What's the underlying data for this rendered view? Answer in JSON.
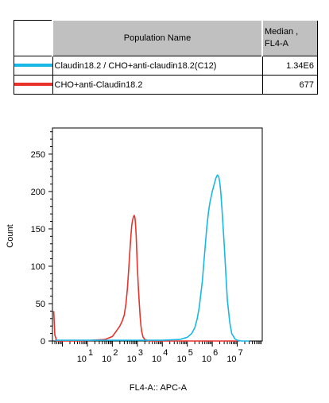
{
  "legend": {
    "header_name": "Population Name",
    "header_median_line1": "Median ,",
    "header_median_line2": "FL4-A",
    "rows": [
      {
        "name": "Claudin18.2 / CHO+anti-claudin18.2(C12)",
        "median": "1.34E6",
        "color": "#19b7e6"
      },
      {
        "name": "CHO+anti-Claudin18.2",
        "median": "677",
        "color": "#e8322c"
      }
    ]
  },
  "chart_data": {
    "type": "area",
    "xlabel": "FL4-A:: APC-A",
    "ylabel": "Count",
    "x_scale": "log",
    "xlim": [
      0.4,
      100000000
    ],
    "ylim": [
      0,
      285
    ],
    "x_ticks": [
      {
        "exp": 1,
        "label": "1"
      },
      {
        "exp": 2,
        "label": "2"
      },
      {
        "exp": 3,
        "label": "3"
      },
      {
        "exp": 4,
        "label": "4"
      },
      {
        "exp": 5,
        "label": "5"
      },
      {
        "exp": 6,
        "label": "6"
      },
      {
        "exp": 7,
        "label": "7"
      }
    ],
    "x_base_label": "10",
    "y_ticks": [
      0,
      50,
      100,
      150,
      200,
      250
    ],
    "series": [
      {
        "name": "CHO+anti-Claudin18.2",
        "color": "#e8322c",
        "x": [
          0.45,
          0.5,
          0.6,
          5,
          50,
          100,
          150,
          200,
          250,
          300,
          350,
          400,
          450,
          500,
          550,
          600,
          650,
          700,
          750,
          800,
          850,
          900,
          950,
          1000,
          1100,
          1200,
          1300,
          1400,
          1500,
          1700,
          2000,
          2500,
          3000,
          5000,
          100000,
          1000000,
          10000000
        ],
        "y": [
          40,
          8,
          0,
          0,
          2,
          6,
          14,
          20,
          27,
          35,
          50,
          70,
          95,
          120,
          140,
          155,
          162,
          166,
          168,
          165,
          155,
          140,
          120,
          100,
          72,
          50,
          32,
          20,
          12,
          5,
          2,
          1,
          0,
          0,
          0,
          0,
          0
        ]
      },
      {
        "name": "Claudin18.2 / CHO+anti-claudin18.2(C12)",
        "color": "#19b7e6",
        "x": [
          0.5,
          100,
          1000,
          10000,
          50000,
          100000,
          150000,
          200000,
          250000,
          300000,
          400000,
          500000,
          600000,
          700000,
          800000,
          900000,
          1000000,
          1200000,
          1400000,
          1600000,
          1800000,
          2000000,
          2200000,
          2500000,
          3000000,
          3500000,
          4000000,
          5000000,
          6000000,
          8000000,
          10000000,
          15000000,
          30000000
        ],
        "y": [
          1,
          1,
          1,
          1,
          2,
          5,
          10,
          18,
          30,
          45,
          80,
          120,
          152,
          172,
          185,
          193,
          200,
          210,
          218,
          222,
          220,
          212,
          198,
          172,
          130,
          90,
          55,
          25,
          10,
          3,
          1,
          0,
          0
        ]
      }
    ]
  }
}
